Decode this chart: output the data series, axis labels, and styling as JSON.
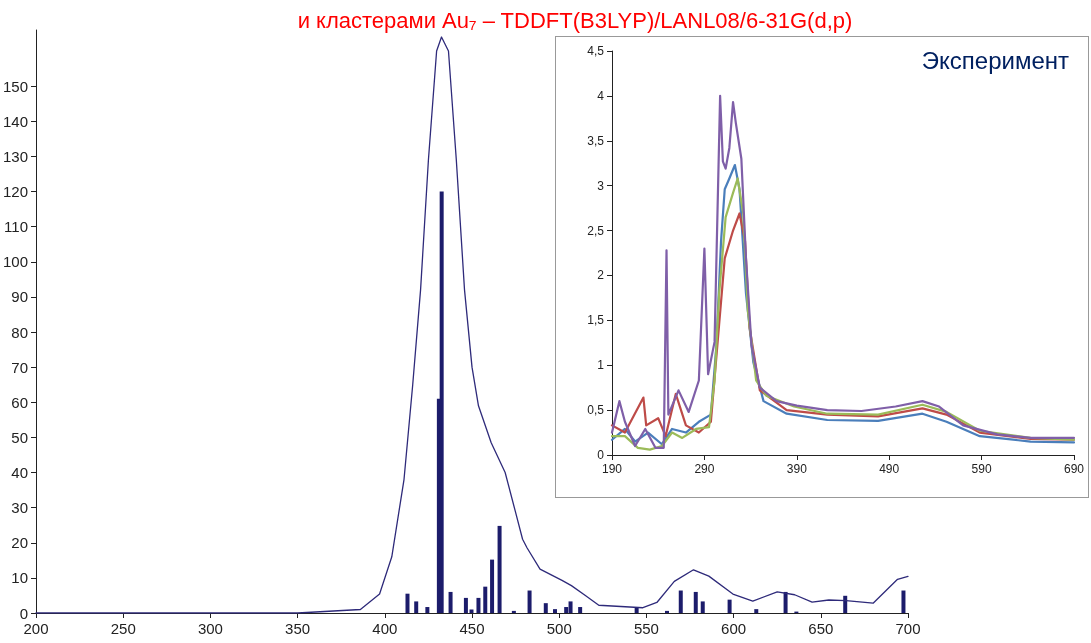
{
  "chart_data": [
    {
      "type": "line",
      "title": "и кластерами Au₇ – TDDFT(B3LYP)/LANL08/6-31G(d,p)",
      "xlim": [
        200,
        700
      ],
      "xticks": [
        200,
        250,
        300,
        350,
        400,
        450,
        500,
        550,
        600,
        650,
        700
      ],
      "ylim": [
        0,
        166
      ],
      "yticks": [
        0,
        10,
        20,
        30,
        40,
        50,
        60,
        70,
        80,
        90,
        100,
        110,
        120,
        130,
        140,
        150
      ],
      "grid": false,
      "marker": "none",
      "line_style": "solid",
      "series": [
        {
          "color": "#2e2a7a",
          "x": [
            200,
            300,
            350,
            386,
            397,
            404,
            411,
            416,
            420.5,
            425,
            429.7,
            432.5,
            436.5,
            441,
            445.7,
            450,
            453.7,
            461,
            469,
            474.8,
            479,
            481.6,
            489,
            501.6,
            507,
            515,
            522.7,
            548,
            556,
            566,
            577,
            585.8,
            599.6,
            611,
            625,
            635,
            645,
            654.6,
            664.5,
            680,
            694,
            700
          ],
          "values": [
            0,
            0,
            0,
            1,
            5.4,
            16,
            38,
            65,
            92,
            129,
            160,
            164,
            160,
            129,
            92,
            70,
            59,
            48.5,
            40,
            29,
            21,
            18.5,
            12.5,
            9.3,
            7.8,
            5,
            2.2,
            1.5,
            3,
            9,
            12.3,
            10.5,
            5.4,
            3.4,
            6,
            5.2,
            3.1,
            3.7,
            3.5,
            2.8,
            9.6,
            10.4
          ]
        },
        {
          "type": "bar",
          "color": "#1c1c6b",
          "x": [
            413,
            418,
            424.4,
            431,
            432.6,
            437.7,
            446.5,
            449.7,
            453.7,
            457.6,
            461.5,
            465.8,
            474,
            483,
            492.3,
            497.6,
            504,
            506.5,
            512,
            544.4,
            561.8,
            569.7,
            578.3,
            582.3,
            597.7,
            613,
            629.8,
            636,
            664,
            697.4
          ],
          "values": [
            5.5,
            3.3,
            1.7,
            61,
            120,
            6,
            4.3,
            1,
            4.3,
            7.5,
            15.2,
            24.8,
            0.6,
            6.4,
            2.8,
            1.1,
            1.7,
            3.3,
            1.7,
            1.5,
            0.6,
            6.4,
            6,
            3.3,
            3.8,
            1.1,
            6,
            0.4,
            4.9,
            6.4
          ]
        }
      ]
    },
    {
      "type": "line",
      "title": "Эксперимент",
      "xlim": [
        190,
        690
      ],
      "xticks": [
        190,
        290,
        390,
        490,
        590,
        690
      ],
      "ylim": [
        0,
        4.5
      ],
      "yticks": [
        0,
        {
          "value": 0.5,
          "label": "0,5"
        },
        1,
        {
          "value": 1.5,
          "label": "1,5"
        },
        2,
        {
          "value": 2.5,
          "label": "2,5"
        },
        3,
        {
          "value": 3.5,
          "label": "3,5"
        },
        4,
        {
          "value": 4.5,
          "label": "4,5"
        }
      ],
      "grid": false,
      "marker": "none",
      "line_style": "solid",
      "series": [
        {
          "color": "#4a7ebb",
          "x": [
            190,
            204,
            215,
            229,
            244,
            255,
            270,
            284,
            297,
            303,
            308,
            312,
            317,
            323,
            328,
            335,
            343,
            354,
            379,
            423,
            478,
            526,
            552,
            588,
            643,
            690
          ],
          "values": [
            0.17,
            0.29,
            0.15,
            0.25,
            0.12,
            0.29,
            0.25,
            0.37,
            0.45,
            1.22,
            2.38,
            2.96,
            3.08,
            3.23,
            2.96,
            1.8,
            1.03,
            0.6,
            0.46,
            0.39,
            0.38,
            0.46,
            0.37,
            0.21,
            0.15,
            0.14
          ]
        },
        {
          "color": "#be4b48",
          "x": [
            190,
            204,
            224,
            227,
            240,
            248,
            259,
            270,
            284,
            297,
            304,
            312,
            321,
            328,
            334,
            339,
            350,
            379,
            423,
            478,
            526,
            552,
            588,
            643,
            690
          ],
          "values": [
            0.33,
            0.25,
            0.64,
            0.33,
            0.41,
            0.21,
            0.68,
            0.33,
            0.25,
            0.37,
            1.22,
            2.19,
            2.5,
            2.69,
            2.38,
            1.41,
            0.72,
            0.5,
            0.45,
            0.43,
            0.52,
            0.45,
            0.25,
            0.18,
            0.17
          ]
        },
        {
          "color": "#9bbb59",
          "x": [
            190,
            204,
            218,
            231,
            244,
            255,
            266,
            281,
            295,
            301,
            306,
            313,
            321,
            326,
            332,
            337,
            346,
            357,
            387,
            423,
            478,
            526,
            552,
            588,
            643,
            690
          ],
          "values": [
            0.21,
            0.21,
            0.08,
            0.06,
            0.1,
            0.25,
            0.19,
            0.29,
            0.31,
            0.83,
            1.8,
            2.65,
            2.92,
            3.08,
            2.69,
            1.61,
            0.83,
            0.66,
            0.54,
            0.46,
            0.45,
            0.56,
            0.48,
            0.27,
            0.19,
            0.17
          ]
        },
        {
          "color": "#7f5fa8",
          "x": [
            190,
            198,
            204,
            215,
            226,
            237,
            246,
            249,
            251,
            262,
            273,
            284,
            290,
            294,
            301,
            307,
            310,
            313,
            317,
            321,
            324,
            330,
            335,
            341,
            350,
            368,
            390,
            423,
            460,
            497,
            526,
            544,
            570,
            607,
            643,
            690
          ],
          "values": [
            0.25,
            0.6,
            0.37,
            0.1,
            0.29,
            0.08,
            0.08,
            2.28,
            0.45,
            0.72,
            0.48,
            0.83,
            2.3,
            0.9,
            1.26,
            4.0,
            3.27,
            3.19,
            3.42,
            3.93,
            3.7,
            3.3,
            2.19,
            1.22,
            0.75,
            0.6,
            0.55,
            0.5,
            0.49,
            0.54,
            0.6,
            0.54,
            0.33,
            0.23,
            0.19,
            0.19
          ]
        }
      ]
    }
  ]
}
